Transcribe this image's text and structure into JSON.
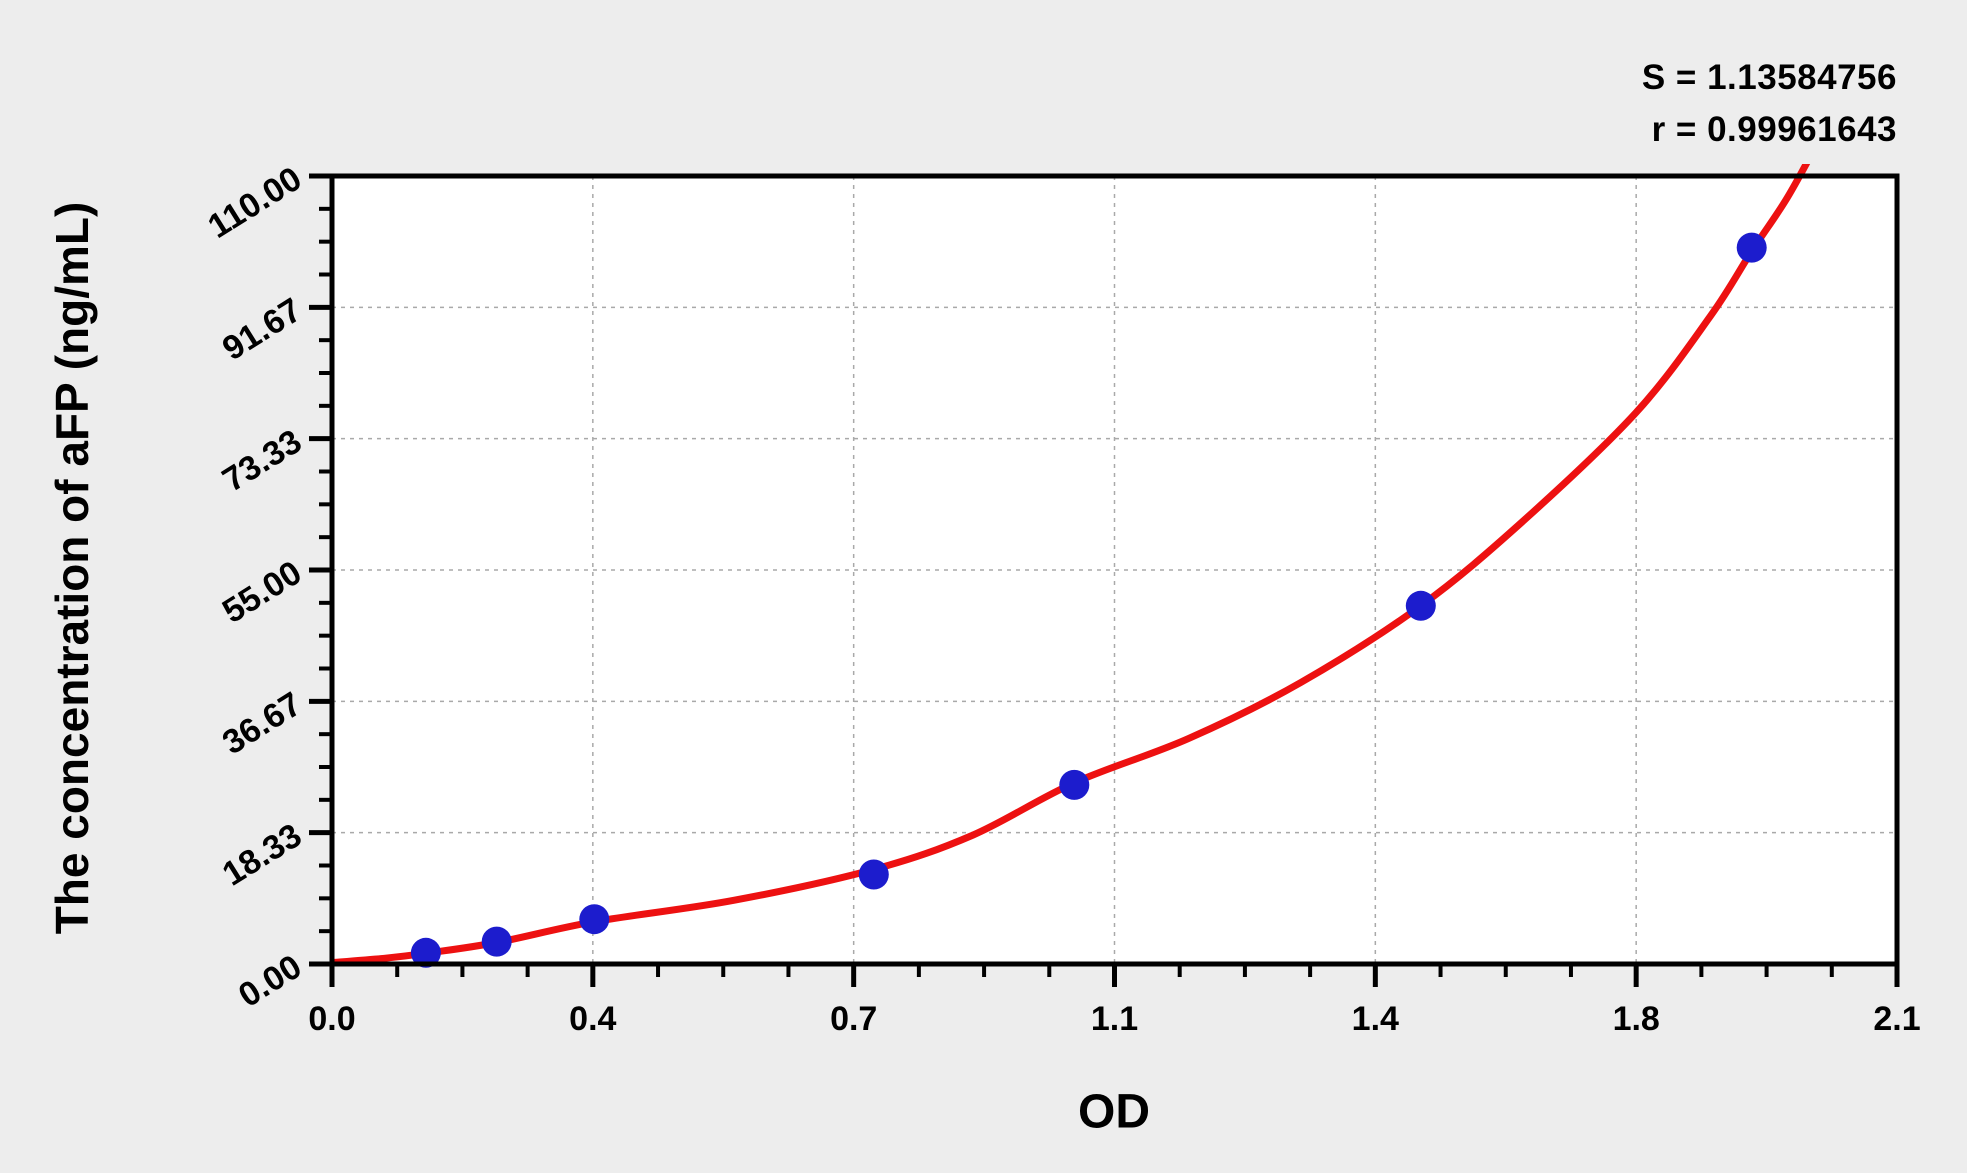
{
  "figure": {
    "background": "#ededed",
    "plot_background": "#ffffff",
    "stats": {
      "s": "S = 1.13584756",
      "r": "r = 0.99961643"
    }
  },
  "chart_data": {
    "type": "scatter",
    "title": "",
    "xlabel": "OD",
    "ylabel": "The concentration of aFP (ng/mL)",
    "xlim": [
      0,
      2.1
    ],
    "ylim": [
      0,
      110
    ],
    "grid": {
      "show": true,
      "style": "dashed",
      "color": "#a9a9a9",
      "position": "major-ticks"
    },
    "x_axis": {
      "tick_values": [
        0,
        0.35,
        0.7,
        1.05,
        1.4,
        1.75,
        2.1
      ],
      "tick_labels": [
        "0.0",
        "0.4",
        "0.7",
        "1.1",
        "1.4",
        "1.8",
        "2.1"
      ],
      "minor_ticks_per_interval": 3
    },
    "y_axis": {
      "tick_values": [
        0,
        18.3333,
        36.6667,
        55,
        73.3333,
        91.6667,
        110
      ],
      "tick_labels": [
        "0.00",
        "18.33",
        "36.67",
        "55.00",
        "73.33",
        "91.67",
        "110.00"
      ],
      "minor_ticks_per_interval": 3
    },
    "annotations": [
      "S = 1.13584756",
      "r = 0.99961643"
    ],
    "series": [
      {
        "name": "standard-points",
        "type": "scatter",
        "color": "#1c1ccd",
        "marker_radius": 15,
        "points": [
          [
            0.126,
            1.5625
          ],
          [
            0.221,
            3.125
          ],
          [
            0.352,
            6.25
          ],
          [
            0.727,
            12.5
          ],
          [
            0.996,
            25
          ],
          [
            1.461,
            50
          ],
          [
            1.905,
            100
          ]
        ]
      },
      {
        "name": "fitted-curve",
        "type": "line",
        "color": "#ed1111",
        "line_width": 7,
        "points": [
          [
            0,
            0.2
          ],
          [
            0.07,
            0.8
          ],
          [
            0.126,
            1.5
          ],
          [
            0.221,
            3.0
          ],
          [
            0.352,
            5.9
          ],
          [
            0.54,
            8.9
          ],
          [
            0.727,
            13.2
          ],
          [
            0.86,
            18.0
          ],
          [
            0.996,
            25.3
          ],
          [
            1.15,
            31.5
          ],
          [
            1.3,
            39.3
          ],
          [
            1.461,
            50
          ],
          [
            1.6,
            62
          ],
          [
            1.75,
            77
          ],
          [
            1.85,
            90.5
          ],
          [
            1.905,
            99.5
          ],
          [
            1.95,
            106.5
          ],
          [
            1.985,
            113
          ]
        ]
      }
    ]
  }
}
